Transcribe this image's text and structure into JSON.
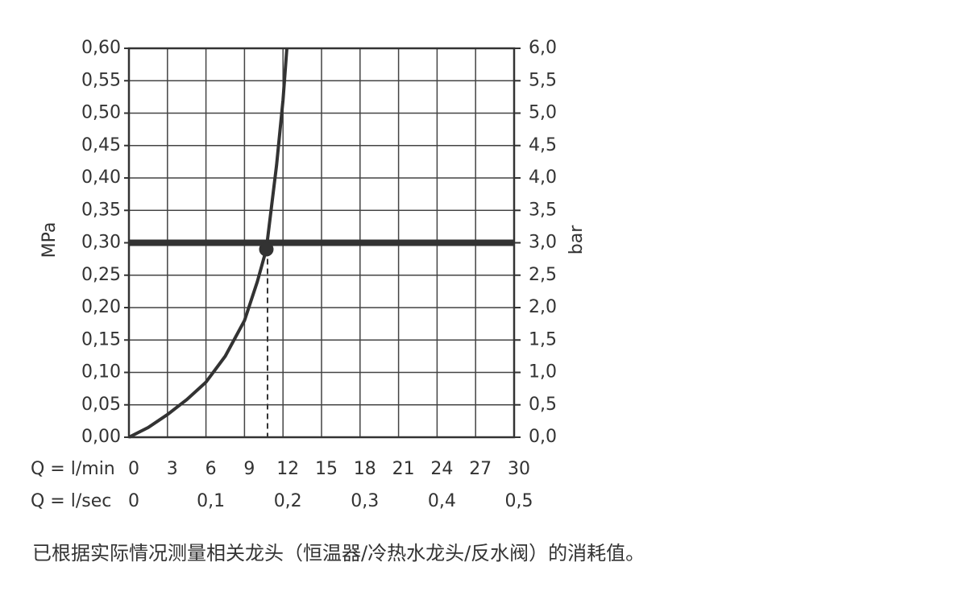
{
  "chart_data": {
    "type": "line",
    "ylabel": "MPa",
    "y2label": "bar",
    "xlabel": "Q = l/min",
    "x2label": "Q = l/sec",
    "caption": "已根据实际情况测量相关龙头（恒温器/冷热水龙头/反水阀）的消耗值。",
    "xlim": [
      0,
      30
    ],
    "xticks": [
      0,
      3,
      6,
      9,
      12,
      15,
      18,
      21,
      24,
      27,
      30
    ],
    "x2lim": [
      0,
      0.5
    ],
    "x2ticks": [
      0,
      {
        "value": 0.1,
        "label": "0,1"
      },
      {
        "value": 0.2,
        "label": "0,2"
      },
      {
        "value": 0.3,
        "label": "0,3"
      },
      {
        "value": 0.4,
        "label": "0,4"
      },
      {
        "value": 0.5,
        "label": "0,5"
      }
    ],
    "ylim": [
      0,
      0.6
    ],
    "yticks": [
      {
        "value": 0,
        "label": "0,00"
      },
      {
        "value": 0.05,
        "label": "0,05"
      },
      {
        "value": 0.1,
        "label": "0,10"
      },
      {
        "value": 0.15,
        "label": "0,15"
      },
      {
        "value": 0.2,
        "label": "0,20"
      },
      {
        "value": 0.25,
        "label": "0,25"
      },
      {
        "value": 0.3,
        "label": "0,30"
      },
      {
        "value": 0.35,
        "label": "0,35"
      },
      {
        "value": 0.4,
        "label": "0,40"
      },
      {
        "value": 0.45,
        "label": "0,45"
      },
      {
        "value": 0.5,
        "label": "0,50"
      },
      {
        "value": 0.55,
        "label": "0,55"
      },
      {
        "value": 0.6,
        "label": "0,60"
      }
    ],
    "y2lim": [
      0,
      6
    ],
    "y2ticks": [
      {
        "value": 0,
        "label": "0,0"
      },
      {
        "value": 0.5,
        "label": "0,5"
      },
      {
        "value": 1,
        "label": "1,0"
      },
      {
        "value": 1.5,
        "label": "1,5"
      },
      {
        "value": 2,
        "label": "2,0"
      },
      {
        "value": 2.5,
        "label": "2,5"
      },
      {
        "value": 3,
        "label": "3,0"
      },
      {
        "value": 3.5,
        "label": "3,5"
      },
      {
        "value": 4,
        "label": "4,0"
      },
      {
        "value": 4.5,
        "label": "4,5"
      },
      {
        "value": 5,
        "label": "5,0"
      },
      {
        "value": 5.5,
        "label": "5,5"
      },
      {
        "value": 6,
        "label": "6,0"
      }
    ],
    "grid": true,
    "series": [
      {
        "color": "#333333",
        "x": [
          0,
          1.5,
          3,
          4.5,
          6,
          7.5,
          9,
          10,
          10.7,
          11.5,
          12,
          12.3
        ],
        "values": [
          0,
          0.015,
          0.035,
          0.058,
          0.085,
          0.125,
          0.18,
          0.24,
          0.29,
          0.42,
          0.52,
          0.6
        ]
      }
    ],
    "reference_line": {
      "value": 0.3,
      "color": "#333333"
    },
    "operating_point": {
      "x": 10.7,
      "y": 0.29,
      "color": "#333333"
    }
  }
}
